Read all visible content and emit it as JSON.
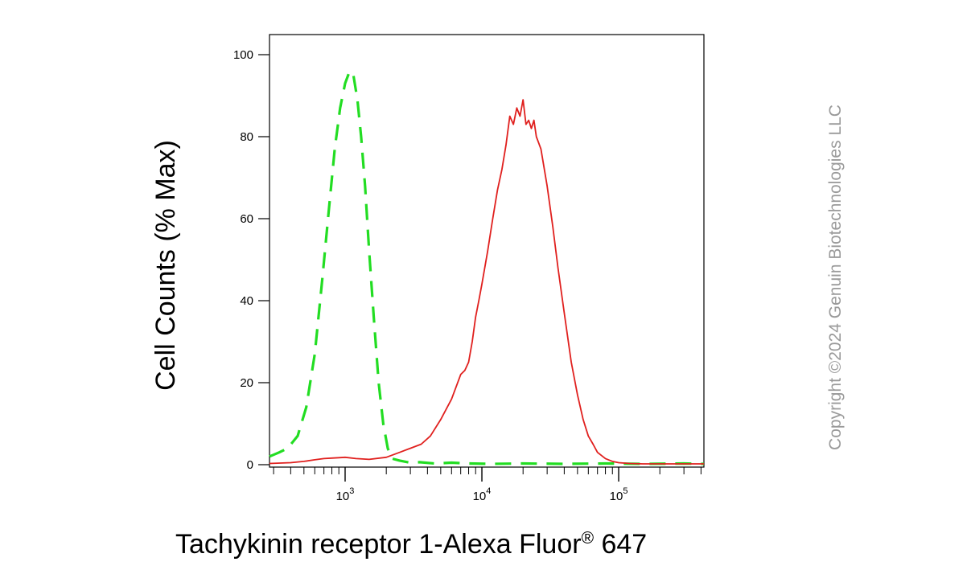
{
  "chart_data": {
    "type": "line",
    "title": "",
    "xlabel": "Tachykinin receptor 1-Alexa Fluor",
    "xlabel_superscript": "®",
    "xlabel_suffix": " 647",
    "ylabel": "Cell Counts (% Max)",
    "x_scale": "log",
    "xlim": [
      280,
      420000
    ],
    "ylim": [
      0,
      100
    ],
    "y_ticks": [
      0,
      20,
      40,
      60,
      80,
      100
    ],
    "x_tick_labels": [
      {
        "base": "10",
        "exp": "3",
        "value": 1000
      },
      {
        "base": "10",
        "exp": "4",
        "value": 10000
      },
      {
        "base": "10",
        "exp": "5",
        "value": 100000
      }
    ],
    "grid": false,
    "series": [
      {
        "color": "#22dd22",
        "style": "dashed",
        "x": [
          280,
          330,
          380,
          450,
          520,
          600,
          680,
          760,
          840,
          920,
          1000,
          1080,
          1150,
          1230,
          1310,
          1400,
          1500,
          1620,
          1760,
          1900,
          2050,
          2200,
          2500,
          3000,
          3500,
          4500,
          6000,
          8000,
          12000,
          20000,
          40000,
          80000,
          150000,
          300000,
          420000
        ],
        "y": [
          2,
          3,
          4,
          7,
          14,
          27,
          45,
          62,
          77,
          87,
          93,
          96,
          95,
          89,
          80,
          68,
          52,
          36,
          20,
          10,
          4,
          1.5,
          1,
          0.5,
          0.6,
          0.3,
          0.5,
          0.3,
          0.2,
          0.3,
          0.2,
          0.3,
          0.2,
          0.3,
          0.2
        ]
      },
      {
        "color": "#e0201e",
        "style": "solid",
        "x": [
          280,
          400,
          500,
          600,
          700,
          800,
          900,
          1000,
          1200,
          1500,
          2000,
          2500,
          3000,
          3600,
          4200,
          5000,
          6000,
          7000,
          7500,
          8000,
          8500,
          9000,
          9500,
          10000,
          11000,
          12000,
          13000,
          14000,
          15000,
          16000,
          17000,
          18000,
          19000,
          20000,
          21000,
          22000,
          23000,
          24000,
          25000,
          27000,
          30000,
          33000,
          36000,
          40000,
          45000,
          50000,
          55000,
          60000,
          65000,
          70000,
          80000,
          90000,
          100000,
          120000,
          150000,
          200000,
          300000,
          420000
        ],
        "y": [
          0.3,
          0.5,
          0.8,
          1.2,
          1.5,
          1.6,
          1.7,
          1.8,
          1.5,
          1.3,
          1.8,
          3,
          4,
          5,
          7,
          11,
          16,
          22,
          23,
          25,
          30,
          36,
          40,
          44,
          52,
          60,
          67,
          72,
          78,
          85,
          83,
          87,
          85,
          89,
          83,
          84,
          82,
          84,
          80,
          77,
          68,
          58,
          48,
          37,
          25,
          17,
          11,
          7,
          5,
          3,
          1.5,
          0.8,
          0.5,
          0.3,
          0.2,
          0.2,
          0.2,
          0.2
        ]
      }
    ]
  },
  "watermark": {
    "copyright": "Copyright ©2024 Genuin Biotechnologies LLC"
  }
}
